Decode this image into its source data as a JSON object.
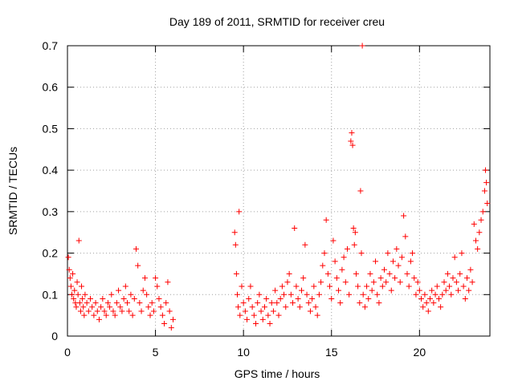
{
  "chart_data": {
    "type": "scatter",
    "title": "Day 189 of 2011, SRMTID for receiver creu",
    "xlabel": "GPS time / hours",
    "ylabel": "SRMTID / TECUs",
    "xlim": [
      0,
      24
    ],
    "ylim": [
      0,
      0.7
    ],
    "xticks": [
      0,
      5,
      10,
      15,
      20
    ],
    "yticks": [
      0,
      0.1,
      0.2,
      0.3,
      0.4,
      0.5,
      0.6,
      0.7
    ],
    "xtick_labels": [
      "0",
      "5",
      "10",
      "15",
      "20"
    ],
    "ytick_labels": [
      "0",
      "0.1",
      "0.2",
      "0.3",
      "0.4",
      "0.5",
      "0.6",
      "0.7"
    ],
    "grid": true,
    "marker": "+",
    "color": "#ff0000",
    "series": [
      {
        "name": "SRMTID",
        "points": [
          [
            0.05,
            0.19
          ],
          [
            0.1,
            0.16
          ],
          [
            0.15,
            0.14
          ],
          [
            0.2,
            0.12
          ],
          [
            0.25,
            0.1
          ],
          [
            0.3,
            0.15
          ],
          [
            0.35,
            0.09
          ],
          [
            0.4,
            0.11
          ],
          [
            0.45,
            0.08
          ],
          [
            0.5,
            0.07
          ],
          [
            0.55,
            0.13
          ],
          [
            0.6,
            0.1
          ],
          [
            0.65,
            0.23
          ],
          [
            0.7,
            0.08
          ],
          [
            0.75,
            0.06
          ],
          [
            0.8,
            0.12
          ],
          [
            0.85,
            0.09
          ],
          [
            0.9,
            0.07
          ],
          [
            0.95,
            0.05
          ],
          [
            1.0,
            0.1
          ],
          [
            1.1,
            0.08
          ],
          [
            1.2,
            0.06
          ],
          [
            1.3,
            0.09
          ],
          [
            1.4,
            0.07
          ],
          [
            1.5,
            0.05
          ],
          [
            1.6,
            0.08
          ],
          [
            1.7,
            0.06
          ],
          [
            1.8,
            0.04
          ],
          [
            1.9,
            0.07
          ],
          [
            2.0,
            0.09
          ],
          [
            2.1,
            0.06
          ],
          [
            2.2,
            0.05
          ],
          [
            2.3,
            0.08
          ],
          [
            2.4,
            0.07
          ],
          [
            2.5,
            0.1
          ],
          [
            2.6,
            0.06
          ],
          [
            2.7,
            0.05
          ],
          [
            2.8,
            0.08
          ],
          [
            2.9,
            0.11
          ],
          [
            3.0,
            0.07
          ],
          [
            3.1,
            0.06
          ],
          [
            3.2,
            0.09
          ],
          [
            3.3,
            0.12
          ],
          [
            3.4,
            0.08
          ],
          [
            3.5,
            0.06
          ],
          [
            3.6,
            0.1
          ],
          [
            3.7,
            0.05
          ],
          [
            3.8,
            0.09
          ],
          [
            3.9,
            0.21
          ],
          [
            4.0,
            0.17
          ],
          [
            4.1,
            0.08
          ],
          [
            4.2,
            0.06
          ],
          [
            4.3,
            0.11
          ],
          [
            4.4,
            0.14
          ],
          [
            4.5,
            0.1
          ],
          [
            4.6,
            0.07
          ],
          [
            4.7,
            0.05
          ],
          [
            4.8,
            0.08
          ],
          [
            4.9,
            0.06
          ],
          [
            5.0,
            0.14
          ],
          [
            5.1,
            0.12
          ],
          [
            5.2,
            0.09
          ],
          [
            5.3,
            0.07
          ],
          [
            5.4,
            0.05
          ],
          [
            5.5,
            0.03
          ],
          [
            5.6,
            0.08
          ],
          [
            5.7,
            0.13
          ],
          [
            5.8,
            0.06
          ],
          [
            5.9,
            0.02
          ],
          [
            6.0,
            0.04
          ],
          [
            9.5,
            0.25
          ],
          [
            9.55,
            0.22
          ],
          [
            9.6,
            0.15
          ],
          [
            9.65,
            0.1
          ],
          [
            9.7,
            0.07
          ],
          [
            9.75,
            0.3
          ],
          [
            9.8,
            0.05
          ],
          [
            9.9,
            0.12
          ],
          [
            10.0,
            0.08
          ],
          [
            10.1,
            0.06
          ],
          [
            10.2,
            0.04
          ],
          [
            10.3,
            0.09
          ],
          [
            10.4,
            0.12
          ],
          [
            10.5,
            0.07
          ],
          [
            10.6,
            0.05
          ],
          [
            10.7,
            0.03
          ],
          [
            10.8,
            0.08
          ],
          [
            10.9,
            0.1
          ],
          [
            11.0,
            0.06
          ],
          [
            11.1,
            0.04
          ],
          [
            11.2,
            0.07
          ],
          [
            11.3,
            0.09
          ],
          [
            11.4,
            0.05
          ],
          [
            11.5,
            0.03
          ],
          [
            11.6,
            0.08
          ],
          [
            11.7,
            0.06
          ],
          [
            11.8,
            0.11
          ],
          [
            11.9,
            0.08
          ],
          [
            12.0,
            0.05
          ],
          [
            12.1,
            0.09
          ],
          [
            12.2,
            0.12
          ],
          [
            12.3,
            0.1
          ],
          [
            12.4,
            0.07
          ],
          [
            12.5,
            0.13
          ],
          [
            12.6,
            0.15
          ],
          [
            12.7,
            0.1
          ],
          [
            12.8,
            0.08
          ],
          [
            12.9,
            0.26
          ],
          [
            13.0,
            0.12
          ],
          [
            13.1,
            0.09
          ],
          [
            13.2,
            0.07
          ],
          [
            13.3,
            0.11
          ],
          [
            13.4,
            0.14
          ],
          [
            13.5,
            0.22
          ],
          [
            13.6,
            0.1
          ],
          [
            13.7,
            0.08
          ],
          [
            13.8,
            0.06
          ],
          [
            13.9,
            0.09
          ],
          [
            14.0,
            0.12
          ],
          [
            14.1,
            0.07
          ],
          [
            14.2,
            0.05
          ],
          [
            14.3,
            0.1
          ],
          [
            14.4,
            0.13
          ],
          [
            14.5,
            0.17
          ],
          [
            14.6,
            0.2
          ],
          [
            14.7,
            0.28
          ],
          [
            14.8,
            0.15
          ],
          [
            14.9,
            0.12
          ],
          [
            15.0,
            0.09
          ],
          [
            15.1,
            0.23
          ],
          [
            15.2,
            0.18
          ],
          [
            15.3,
            0.14
          ],
          [
            15.4,
            0.11
          ],
          [
            15.5,
            0.08
          ],
          [
            15.6,
            0.16
          ],
          [
            15.7,
            0.19
          ],
          [
            15.8,
            0.13
          ],
          [
            15.9,
            0.21
          ],
          [
            16.0,
            0.1
          ],
          [
            16.1,
            0.47
          ],
          [
            16.15,
            0.49
          ],
          [
            16.2,
            0.46
          ],
          [
            16.25,
            0.26
          ],
          [
            16.3,
            0.22
          ],
          [
            16.35,
            0.25
          ],
          [
            16.4,
            0.15
          ],
          [
            16.5,
            0.12
          ],
          [
            16.6,
            0.08
          ],
          [
            16.65,
            0.35
          ],
          [
            16.7,
            0.2
          ],
          [
            16.75,
            0.7
          ],
          [
            16.8,
            0.1
          ],
          [
            16.9,
            0.07
          ],
          [
            17.0,
            0.12
          ],
          [
            17.1,
            0.09
          ],
          [
            17.2,
            0.15
          ],
          [
            17.3,
            0.11
          ],
          [
            17.4,
            0.13
          ],
          [
            17.5,
            0.18
          ],
          [
            17.6,
            0.1
          ],
          [
            17.7,
            0.08
          ],
          [
            17.8,
            0.14
          ],
          [
            17.9,
            0.12
          ],
          [
            18.0,
            0.16
          ],
          [
            18.1,
            0.13
          ],
          [
            18.2,
            0.2
          ],
          [
            18.3,
            0.15
          ],
          [
            18.4,
            0.11
          ],
          [
            18.5,
            0.18
          ],
          [
            18.6,
            0.14
          ],
          [
            18.7,
            0.21
          ],
          [
            18.8,
            0.17
          ],
          [
            18.9,
            0.13
          ],
          [
            19.0,
            0.19
          ],
          [
            19.1,
            0.29
          ],
          [
            19.2,
            0.24
          ],
          [
            19.3,
            0.15
          ],
          [
            19.4,
            0.12
          ],
          [
            19.5,
            0.18
          ],
          [
            19.6,
            0.2
          ],
          [
            19.7,
            0.14
          ],
          [
            19.8,
            0.1
          ],
          [
            19.9,
            0.13
          ],
          [
            20.0,
            0.11
          ],
          [
            20.1,
            0.09
          ],
          [
            20.2,
            0.07
          ],
          [
            20.3,
            0.1
          ],
          [
            20.4,
            0.08
          ],
          [
            20.5,
            0.06
          ],
          [
            20.6,
            0.09
          ],
          [
            20.7,
            0.11
          ],
          [
            20.8,
            0.08
          ],
          [
            20.9,
            0.1
          ],
          [
            21.0,
            0.12
          ],
          [
            21.1,
            0.09
          ],
          [
            21.2,
            0.07
          ],
          [
            21.3,
            0.1
          ],
          [
            21.4,
            0.13
          ],
          [
            21.5,
            0.11
          ],
          [
            21.6,
            0.15
          ],
          [
            21.7,
            0.12
          ],
          [
            21.8,
            0.1
          ],
          [
            21.9,
            0.14
          ],
          [
            22.0,
            0.19
          ],
          [
            22.1,
            0.13
          ],
          [
            22.2,
            0.11
          ],
          [
            22.3,
            0.15
          ],
          [
            22.4,
            0.2
          ],
          [
            22.5,
            0.12
          ],
          [
            22.6,
            0.09
          ],
          [
            22.7,
            0.14
          ],
          [
            22.8,
            0.11
          ],
          [
            22.9,
            0.16
          ],
          [
            23.0,
            0.13
          ],
          [
            23.1,
            0.27
          ],
          [
            23.2,
            0.23
          ],
          [
            23.3,
            0.21
          ],
          [
            23.4,
            0.25
          ],
          [
            23.5,
            0.28
          ],
          [
            23.6,
            0.3
          ],
          [
            23.7,
            0.35
          ],
          [
            23.75,
            0.4
          ],
          [
            23.8,
            0.37
          ],
          [
            23.85,
            0.32
          ]
        ]
      }
    ]
  }
}
